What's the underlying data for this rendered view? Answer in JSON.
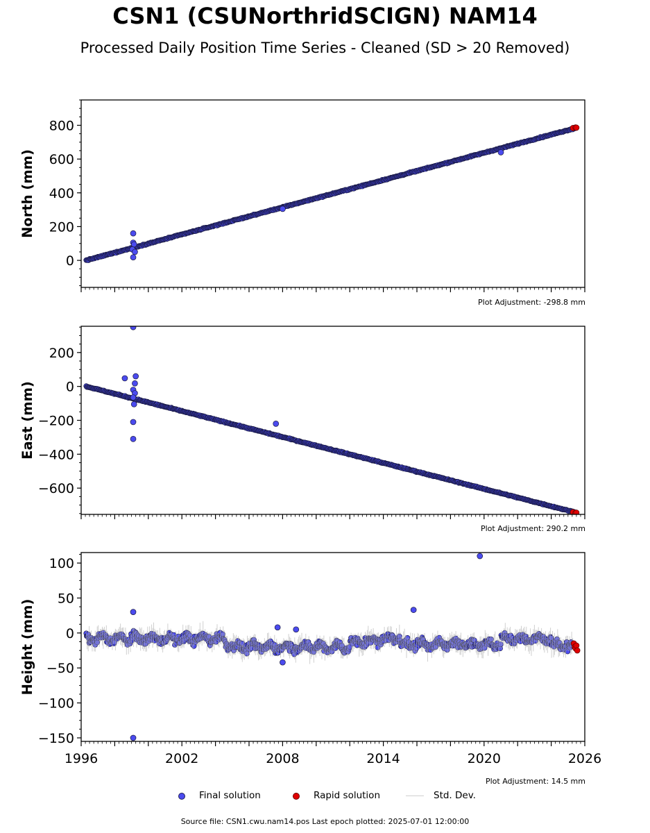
{
  "header": {
    "title": "CSN1 (CSUNorthridSCIGN) NAM14",
    "subtitle": "Processed Daily Position Time Series - Cleaned (SD > 20 Removed)"
  },
  "chart_data": [
    {
      "type": "scatter",
      "ylabel": "North (mm)",
      "xlim": [
        1996,
        2026
      ],
      "ylim": [
        -160,
        950
      ],
      "yticks": [
        0,
        200,
        400,
        600,
        800
      ],
      "xticks": [],
      "adjustment": "Plot Adjustment: -298.8 mm",
      "trend": {
        "start": [
          1996.3,
          0
        ],
        "end": [
          2025.5,
          785
        ]
      },
      "outliers": [
        [
          1999.1,
          160
        ],
        [
          1999.1,
          105
        ],
        [
          1999.15,
          95
        ],
        [
          1999.05,
          65
        ],
        [
          1999.2,
          50
        ],
        [
          1999.1,
          18
        ],
        [
          2021.0,
          640
        ],
        [
          2008.0,
          305
        ]
      ],
      "rapid": [
        [
          2025.3,
          784
        ],
        [
          2025.45,
          787
        ],
        [
          2025.5,
          786
        ]
      ]
    },
    {
      "type": "scatter",
      "ylabel": "East (mm)",
      "xlim": [
        1996,
        2026
      ],
      "ylim": [
        -755,
        355
      ],
      "yticks": [
        -600,
        -400,
        -200,
        0,
        200
      ],
      "xticks": [],
      "adjustment": "Plot Adjustment: 290.2 mm",
      "trend": {
        "start": [
          1996.3,
          0
        ],
        "end": [
          2025.5,
          -745
        ]
      },
      "outliers": [
        [
          1999.1,
          350
        ],
        [
          1999.25,
          60
        ],
        [
          1998.6,
          48
        ],
        [
          1999.2,
          18
        ],
        [
          1999.1,
          -20
        ],
        [
          1999.2,
          -40
        ],
        [
          1999.1,
          -65
        ],
        [
          1999.15,
          -105
        ],
        [
          1999.1,
          -210
        ],
        [
          1999.1,
          -310
        ],
        [
          2007.6,
          -220
        ]
      ],
      "rapid": [
        [
          2025.3,
          -742
        ],
        [
          2025.45,
          -746
        ],
        [
          2025.5,
          -745
        ]
      ]
    },
    {
      "type": "scatter",
      "ylabel": "Height (mm)",
      "xlim": [
        1996,
        2026
      ],
      "ylim": [
        -155,
        115
      ],
      "yticks": [
        -150,
        -100,
        -50,
        0,
        50,
        100
      ],
      "xticks": [
        1996,
        2002,
        2008,
        2014,
        2020,
        2026
      ],
      "adjustment": "Plot Adjustment: 14.5 mm",
      "outliers": [
        [
          2019.75,
          110
        ],
        [
          2015.8,
          33
        ],
        [
          1999.1,
          30
        ],
        [
          2007.7,
          8
        ],
        [
          2008.8,
          5
        ],
        [
          2008.0,
          -42
        ],
        [
          1999.1,
          -150
        ]
      ],
      "rapid": [
        [
          2025.35,
          -15
        ],
        [
          2025.4,
          -20
        ],
        [
          2025.45,
          -22
        ],
        [
          2025.5,
          -18
        ],
        [
          2025.55,
          -25
        ]
      ]
    }
  ],
  "legend": {
    "final": "Final solution",
    "rapid": "Rapid solution",
    "std": "Std. Dev.",
    "final_color": "#4b4bef",
    "rapid_color": "#e00000"
  },
  "footer": {
    "source": "Source file: CSN1.cwu.nam14.pos  Last epoch plotted: 2025-07-01 12:00:00"
  }
}
